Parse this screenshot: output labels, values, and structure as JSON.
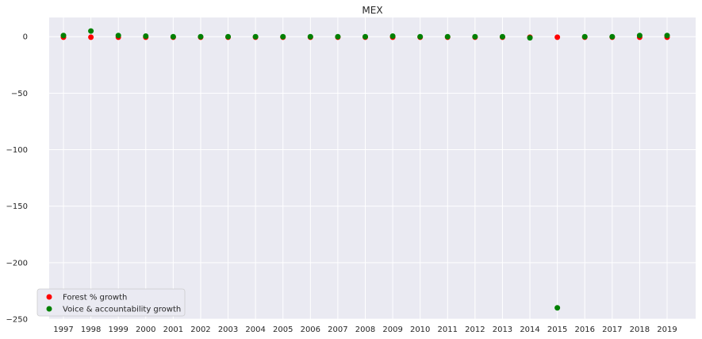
{
  "chart_data": {
    "type": "scatter",
    "title": "MEX",
    "xlabel": "",
    "ylabel": "",
    "x": [
      1997,
      1998,
      1999,
      2000,
      2001,
      2002,
      2003,
      2004,
      2005,
      2006,
      2007,
      2008,
      2009,
      2010,
      2011,
      2012,
      2013,
      2014,
      2015,
      2016,
      2017,
      2018,
      2019
    ],
    "ylim": [
      -250,
      17
    ],
    "yticks": [
      0,
      -50,
      -100,
      -150,
      -200,
      -250
    ],
    "grid": true,
    "legend_position": "bottom-left",
    "series": [
      {
        "name": "Forest % growth",
        "color": "#ff0000",
        "values": [
          -0.5,
          -0.5,
          -0.5,
          -0.5,
          -0.5,
          -0.5,
          -0.5,
          -0.5,
          -0.5,
          -0.5,
          -0.5,
          -0.5,
          -0.5,
          -0.5,
          -0.5,
          -0.5,
          -0.5,
          -0.5,
          -0.5,
          -0.5,
          -0.5,
          -0.5,
          -0.5
        ]
      },
      {
        "name": "Voice & accountability growth",
        "color": "#008000",
        "values": [
          1.0,
          5.0,
          1.0,
          0.5,
          0,
          0,
          0,
          0,
          0,
          0,
          0,
          0,
          0.5,
          0,
          0,
          0,
          0,
          -1.0,
          -240,
          0,
          0,
          1.0,
          1.0
        ]
      }
    ]
  }
}
